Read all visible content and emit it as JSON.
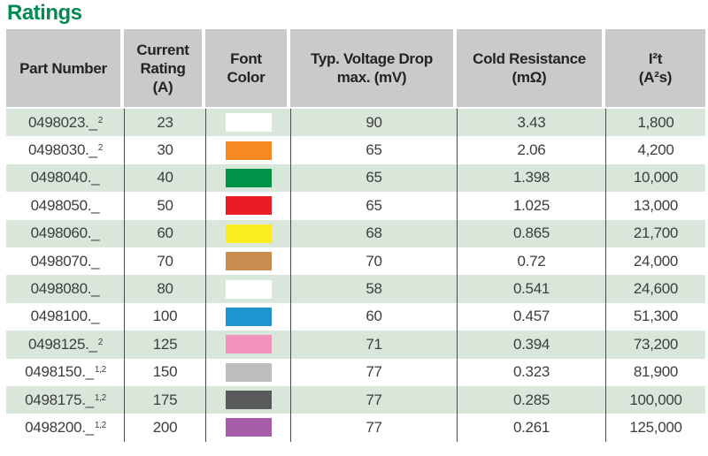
{
  "title": "Ratings",
  "theme": {
    "title_green": "#008B4F",
    "header_bg": "#c9cacb",
    "row_tint": "#d8e7da",
    "row_plain": "#ffffff",
    "grid_line": "#4a4a4c",
    "body_text": "#3d3d3f",
    "header_text": "#232323"
  },
  "table": {
    "headers": [
      {
        "lines": [
          "Part Number"
        ]
      },
      {
        "lines": [
          "Current",
          "Rating",
          "(A)"
        ]
      },
      {
        "lines": [
          "Font",
          "Color"
        ]
      },
      {
        "lines": [
          "Typ. Voltage Drop",
          "max. (mV)"
        ]
      },
      {
        "lines": [
          "Cold Resistance",
          "(mΩ)"
        ]
      },
      {
        "lines": [
          "I²t",
          "(A²s)"
        ]
      }
    ],
    "rows": [
      {
        "part_number": "0498023._",
        "sup": "2",
        "current_rating": "23",
        "font_color_hex": "#FFFFFF",
        "font_color_name": "white",
        "voltage_drop": "90",
        "cold_resistance": "3.43",
        "i2t": "1,800"
      },
      {
        "part_number": "0498030._",
        "sup": "2",
        "current_rating": "30",
        "font_color_hex": "#F6891F",
        "font_color_name": "orange",
        "voltage_drop": "65",
        "cold_resistance": "2.06",
        "i2t": "4,200"
      },
      {
        "part_number": "0498040._",
        "sup": "",
        "current_rating": "40",
        "font_color_hex": "#009347",
        "font_color_name": "green",
        "voltage_drop": "65",
        "cold_resistance": "1.398",
        "i2t": "10,000"
      },
      {
        "part_number": "0498050._",
        "sup": "",
        "current_rating": "50",
        "font_color_hex": "#EC1C24",
        "font_color_name": "red",
        "voltage_drop": "65",
        "cold_resistance": "1.025",
        "i2t": "13,000"
      },
      {
        "part_number": "0498060._",
        "sup": "",
        "current_rating": "60",
        "font_color_hex": "#F9ED21",
        "font_color_name": "yellow",
        "voltage_drop": "68",
        "cold_resistance": "0.865",
        "i2t": "21,700"
      },
      {
        "part_number": "0498070._",
        "sup": "",
        "current_rating": "70",
        "font_color_hex": "#C98C4F",
        "font_color_name": "tan",
        "voltage_drop": "70",
        "cold_resistance": "0.72",
        "i2t": "24,000"
      },
      {
        "part_number": "0498080._",
        "sup": "",
        "current_rating": "80",
        "font_color_hex": "#FFFFFF",
        "font_color_name": "white",
        "voltage_drop": "58",
        "cold_resistance": "0.541",
        "i2t": "24,600"
      },
      {
        "part_number": "0498100._",
        "sup": "",
        "current_rating": "100",
        "font_color_hex": "#1E95CE",
        "font_color_name": "blue",
        "voltage_drop": "60",
        "cold_resistance": "0.457",
        "i2t": "51,300"
      },
      {
        "part_number": "0498125._",
        "sup": "2",
        "current_rating": "125",
        "font_color_hex": "#F492BE",
        "font_color_name": "pink",
        "voltage_drop": "71",
        "cold_resistance": "0.394",
        "i2t": "73,200"
      },
      {
        "part_number": "0498150._",
        "sup": "1,2",
        "current_rating": "150",
        "font_color_hex": "#BCBEC0",
        "font_color_name": "light-gray",
        "voltage_drop": "77",
        "cold_resistance": "0.323",
        "i2t": "81,900"
      },
      {
        "part_number": "0498175._",
        "sup": "1,2",
        "current_rating": "175",
        "font_color_hex": "#58595B",
        "font_color_name": "dark-gray",
        "voltage_drop": "77",
        "cold_resistance": "0.285",
        "i2t": "100,000"
      },
      {
        "part_number": "0498200._",
        "sup": "1,2",
        "current_rating": "200",
        "font_color_hex": "#A65CA8",
        "font_color_name": "purple",
        "voltage_drop": "77",
        "cold_resistance": "0.261",
        "i2t": "125,000"
      }
    ]
  }
}
